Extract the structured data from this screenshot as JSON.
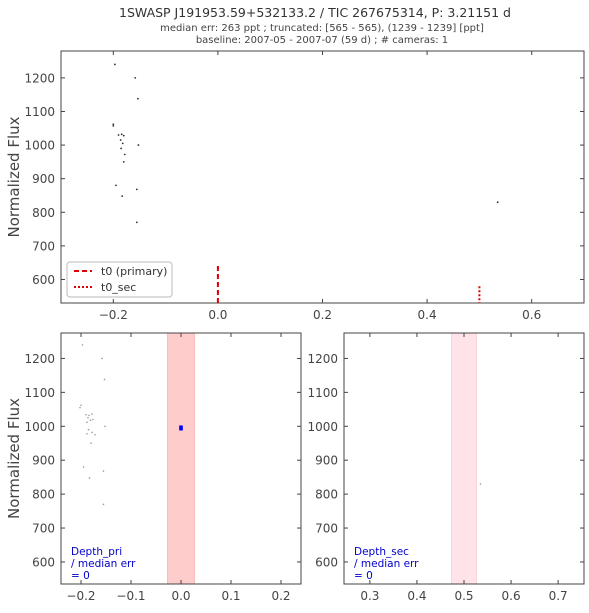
{
  "header": {
    "title": "1SWASP J191953.59+532133.2 / TIC 267675314, P: 3.21151 d",
    "subtitle1": "median err: 263 ppt ; truncated: [565 - 565), (1239 - 1239] [ppt]",
    "subtitle2": "baseline: 2007-05 - 2007-07 (59 d)  ;  # cameras: 1"
  },
  "colors": {
    "primary_line": "#dd0000",
    "primary_band": "#ffcccc",
    "secondary_band": "#ffe3e8",
    "annotation": "#0000cc",
    "binned": "#0000ff"
  },
  "chart_data": [
    {
      "type": "scatter",
      "panel": "top",
      "xlabel": "",
      "ylabel": "Normalized Flux",
      "xlim": [
        -0.3,
        0.7
      ],
      "ylim": [
        530,
        1280
      ],
      "xticks": [
        -0.2,
        0.0,
        0.2,
        0.4,
        0.6
      ],
      "xtick_labels": [
        "−0.2",
        "0.0",
        "0.2",
        "0.4",
        "0.6"
      ],
      "yticks": [
        600,
        700,
        800,
        900,
        1000,
        1100,
        1200
      ],
      "yticks_labels": [
        "600",
        "700",
        "800",
        "900",
        "1000",
        "1100",
        "1200"
      ],
      "points": [
        [
          -0.197,
          1240
        ],
        [
          -0.158,
          1200
        ],
        [
          -0.153,
          1138
        ],
        [
          -0.2,
          1062
        ],
        [
          -0.2,
          1057
        ],
        [
          -0.19,
          1030
        ],
        [
          -0.184,
          1032
        ],
        [
          -0.18,
          1028
        ],
        [
          -0.186,
          1015
        ],
        [
          -0.182,
          1005
        ],
        [
          -0.152,
          1000
        ],
        [
          -0.185,
          990
        ],
        [
          -0.178,
          972
        ],
        [
          -0.18,
          950
        ],
        [
          -0.195,
          880
        ],
        [
          -0.155,
          868
        ],
        [
          -0.183,
          848
        ],
        [
          -0.155,
          770
        ],
        [
          0.535,
          830
        ]
      ],
      "legend": {
        "position": "lower-left",
        "entries": [
          {
            "label": "t0 (primary)",
            "style": "dashed"
          },
          {
            "label": "t0_sec",
            "style": "dotted"
          }
        ]
      },
      "markers": {
        "primary_x": 0.0,
        "secondary_x": 0.5
      }
    },
    {
      "type": "scatter",
      "panel": "bottom-left",
      "xlabel": "",
      "ylabel": "Normalized Flux",
      "xlim": [
        -0.24,
        0.24
      ],
      "ylim": [
        535,
        1275
      ],
      "xticks": [
        -0.2,
        -0.1,
        0.0,
        0.1,
        0.2
      ],
      "xtick_labels": [
        "−0.2",
        "−0.1",
        "0.0",
        "0.1",
        "0.2"
      ],
      "yticks": [
        600,
        700,
        800,
        900,
        1000,
        1100,
        1200
      ],
      "yticks_labels": [
        "600",
        "700",
        "800",
        "900",
        "1000",
        "1100",
        "1200"
      ],
      "band": [
        -0.027,
        0.027
      ],
      "binned_point": [
        0.0,
        995
      ],
      "points": [
        [
          -0.197,
          1240
        ],
        [
          -0.158,
          1200
        ],
        [
          -0.153,
          1138
        ],
        [
          -0.2,
          1062
        ],
        [
          -0.202,
          1055
        ],
        [
          -0.19,
          1034
        ],
        [
          -0.184,
          1032
        ],
        [
          -0.178,
          1036
        ],
        [
          -0.186,
          1025
        ],
        [
          -0.181,
          1018
        ],
        [
          -0.188,
          1012
        ],
        [
          -0.176,
          1020
        ],
        [
          -0.152,
          1000
        ],
        [
          -0.185,
          990
        ],
        [
          -0.178,
          982
        ],
        [
          -0.188,
          978
        ],
        [
          -0.172,
          975
        ],
        [
          -0.18,
          950
        ],
        [
          -0.195,
          880
        ],
        [
          -0.155,
          868
        ],
        [
          -0.183,
          848
        ],
        [
          -0.155,
          770
        ]
      ],
      "annotation": [
        "Depth_pri",
        " / median err",
        " = 0"
      ]
    },
    {
      "type": "scatter",
      "panel": "bottom-right",
      "xlabel": "",
      "ylabel": "",
      "xlim": [
        0.245,
        0.755
      ],
      "ylim": [
        535,
        1275
      ],
      "xticks": [
        0.3,
        0.4,
        0.5,
        0.6,
        0.7
      ],
      "xtick_labels": [
        "0.3",
        "0.4",
        "0.5",
        "0.6",
        "0.7"
      ],
      "yticks": [
        600,
        700,
        800,
        900,
        1000,
        1100,
        1200
      ],
      "yticks_labels": [
        "600",
        "700",
        "800",
        "900",
        "1000",
        "1100",
        "1200"
      ],
      "band": [
        0.473,
        0.527
      ],
      "points": [
        [
          0.535,
          830
        ]
      ],
      "annotation": [
        "Depth_sec",
        " / median err",
        " = 0"
      ]
    }
  ]
}
